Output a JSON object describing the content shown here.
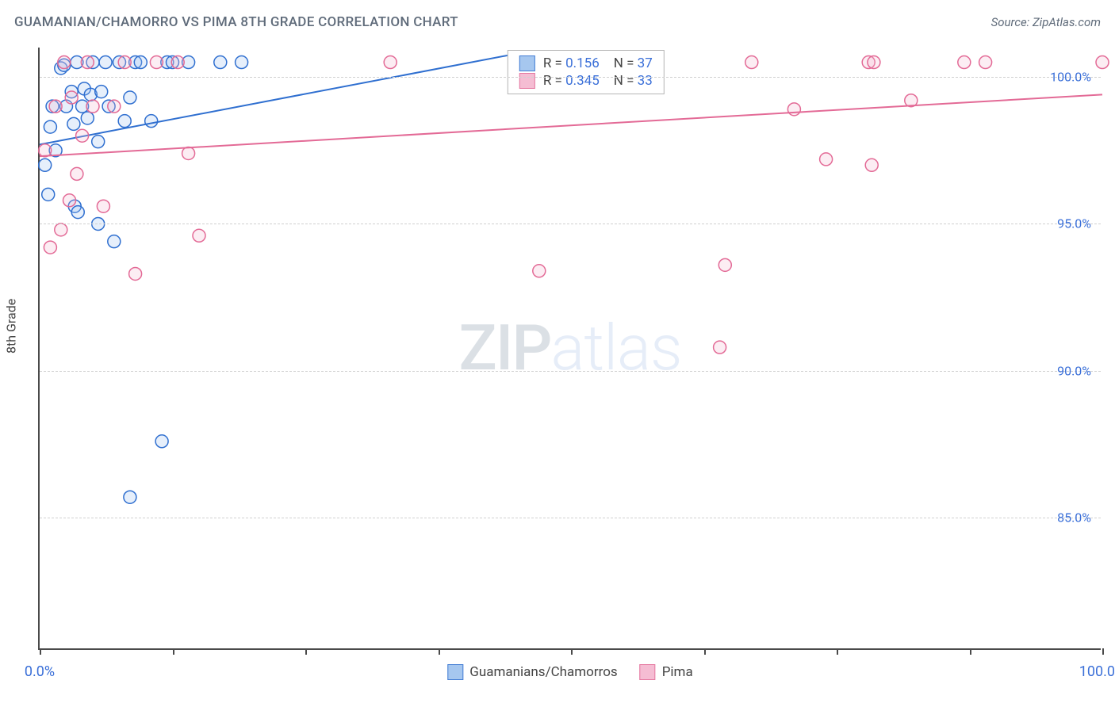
{
  "title": "GUAMANIAN/CHAMORRO VS PIMA 8TH GRADE CORRELATION CHART",
  "source_prefix": "Source: ",
  "source_link": "ZipAtlas.com",
  "watermark_a": "ZIP",
  "watermark_b": "atlas",
  "chart": {
    "type": "scatter",
    "ylabel": "8th Grade",
    "xlim": [
      0,
      100
    ],
    "ylim": [
      80.5,
      101
    ],
    "xtick_positions": [
      0,
      12.5,
      25,
      37.5,
      50,
      62.5,
      75,
      87.5,
      100
    ],
    "xtick_labels": {
      "0": "0.0%",
      "100": "100.0%"
    },
    "ytick_positions": [
      85,
      90,
      95,
      100
    ],
    "ytick_labels": [
      "85.0%",
      "90.0%",
      "95.0%",
      "100.0%"
    ],
    "background_color": "#ffffff",
    "grid_color": "#d0d0d0",
    "axis_color": "#4a4a4a",
    "tick_label_color": "#3a6fd8",
    "marker_radius": 8,
    "marker_stroke_width": 1.5,
    "marker_fill_opacity": 0.25,
    "trend_line_width": 2,
    "series": [
      {
        "name": "Guamanians/Chamorros",
        "color_stroke": "#2f6fd0",
        "color_fill": "#9dc1ee",
        "R": "0.156",
        "N": "37",
        "trend": {
          "x1": 0,
          "y1": 97.7,
          "x2": 45,
          "y2": 100.8
        },
        "points": [
          [
            0.5,
            97.0
          ],
          [
            0.8,
            96.0
          ],
          [
            1.0,
            98.3
          ],
          [
            1.2,
            99.0
          ],
          [
            1.5,
            97.5
          ],
          [
            2.0,
            100.3
          ],
          [
            2.3,
            100.4
          ],
          [
            2.5,
            99.0
          ],
          [
            3.0,
            99.5
          ],
          [
            3.2,
            98.4
          ],
          [
            3.3,
            95.6
          ],
          [
            3.5,
            100.5
          ],
          [
            3.6,
            95.4
          ],
          [
            4.0,
            99.0
          ],
          [
            4.2,
            99.6
          ],
          [
            4.5,
            98.6
          ],
          [
            4.8,
            99.4
          ],
          [
            5.0,
            100.5
          ],
          [
            5.5,
            97.8
          ],
          [
            5.8,
            99.5
          ],
          [
            6.2,
            100.5
          ],
          [
            6.5,
            99.0
          ],
          [
            7.0,
            94.4
          ],
          [
            7.5,
            100.5
          ],
          [
            8.0,
            98.5
          ],
          [
            8.5,
            99.3
          ],
          [
            9.0,
            100.5
          ],
          [
            9.5,
            100.5
          ],
          [
            10.5,
            98.5
          ],
          [
            12.0,
            100.5
          ],
          [
            12.5,
            100.5
          ],
          [
            14.0,
            100.5
          ],
          [
            17.0,
            100.5
          ],
          [
            19.0,
            100.5
          ],
          [
            8.5,
            85.7
          ],
          [
            11.5,
            87.6
          ],
          [
            5.5,
            95.0
          ]
        ]
      },
      {
        "name": "Pima",
        "color_stroke": "#e36a96",
        "color_fill": "#f4b6cf",
        "R": "0.345",
        "N": "33",
        "trend": {
          "x1": 0,
          "y1": 97.3,
          "x2": 100,
          "y2": 99.4
        },
        "points": [
          [
            0.5,
            97.5
          ],
          [
            1.0,
            94.2
          ],
          [
            1.5,
            99.0
          ],
          [
            2.0,
            94.8
          ],
          [
            2.3,
            100.5
          ],
          [
            2.8,
            95.8
          ],
          [
            3.0,
            99.3
          ],
          [
            3.5,
            96.7
          ],
          [
            4.0,
            98.0
          ],
          [
            4.5,
            100.5
          ],
          [
            5.0,
            99.0
          ],
          [
            6.0,
            95.6
          ],
          [
            7.0,
            99.0
          ],
          [
            8.0,
            100.5
          ],
          [
            9.0,
            93.3
          ],
          [
            11.0,
            100.5
          ],
          [
            13.0,
            100.5
          ],
          [
            14.0,
            97.4
          ],
          [
            15.0,
            94.6
          ],
          [
            33.0,
            100.5
          ],
          [
            47.0,
            93.4
          ],
          [
            64.0,
            90.8
          ],
          [
            64.5,
            93.6
          ],
          [
            67.0,
            100.5
          ],
          [
            71.0,
            98.9
          ],
          [
            74.0,
            97.2
          ],
          [
            78.0,
            100.5
          ],
          [
            78.5,
            100.5
          ],
          [
            78.3,
            97.0
          ],
          [
            82.0,
            99.2
          ],
          [
            87.0,
            100.5
          ],
          [
            89.0,
            100.5
          ],
          [
            100.0,
            100.5
          ]
        ]
      }
    ]
  },
  "legend_top": {
    "R_label": "R =",
    "N_label": "N ="
  }
}
